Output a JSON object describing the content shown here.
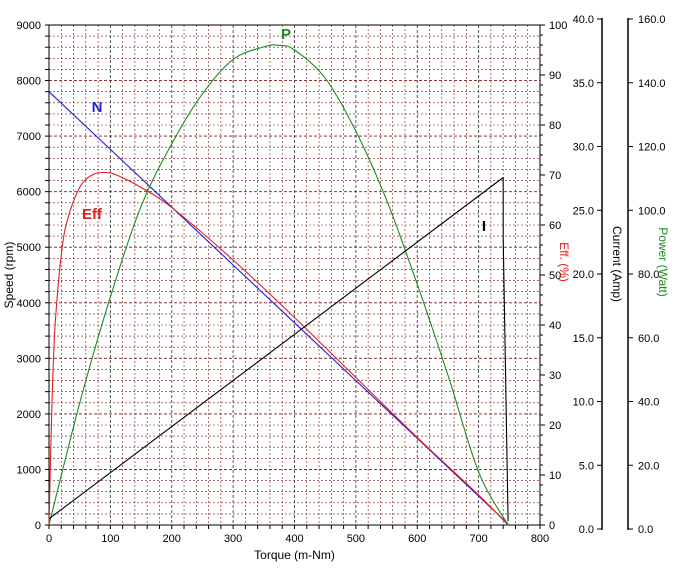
{
  "chart_data": {
    "type": "line",
    "grid": true,
    "legend": "none",
    "axes": {
      "x": {
        "label": "Torque (m-Nm)",
        "range": [
          0,
          800
        ],
        "ticks": [
          "0",
          "100",
          "200",
          "300",
          "400",
          "500",
          "600",
          "700",
          "800"
        ]
      },
      "speed": {
        "label": "Speed (rpm)",
        "range": [
          0,
          9000
        ],
        "ticks": [
          "0",
          "1000",
          "2000",
          "3000",
          "4000",
          "5000",
          "6000",
          "7000",
          "8000",
          "9000"
        ]
      },
      "eff": {
        "label": "Eff. (%)",
        "range": [
          0,
          100
        ],
        "ticks": [
          "0",
          "10",
          "20",
          "30",
          "40",
          "50",
          "60",
          "70",
          "80",
          "90",
          "100"
        ]
      },
      "current": {
        "label": "Current (Amp)",
        "range": [
          0,
          40
        ],
        "ticks": [
          "0.0",
          "5.0",
          "10.0",
          "15.0",
          "20.0",
          "25.0",
          "30.0",
          "35.0",
          "40.0"
        ]
      },
      "power": {
        "label": "Power (Watt)",
        "range": [
          0,
          160
        ],
        "ticks": [
          "0.0",
          "20.0",
          "40.0",
          "60.0",
          "80.0",
          "100.0",
          "120.0",
          "140.0",
          "160.0"
        ]
      }
    },
    "series": [
      {
        "name": "N",
        "axis": "speed",
        "color": "#1f1fd6",
        "x": [
          0,
          100,
          200,
          300,
          400,
          500,
          600,
          700,
          748
        ],
        "y": [
          7800,
          6760,
          5720,
          4680,
          3640,
          2600,
          1560,
          520,
          20
        ]
      },
      {
        "name": "Eff",
        "axis": "eff",
        "color": "#e02020",
        "x": [
          0,
          5,
          10,
          20,
          30,
          50,
          70,
          90,
          110,
          150,
          200,
          300,
          400,
          500,
          600,
          700,
          748
        ],
        "y": [
          0,
          25,
          40,
          54,
          61,
          67.5,
          70,
          70.5,
          70,
          67.5,
          63.5,
          53,
          41.5,
          29.5,
          17.5,
          6,
          0
        ]
      },
      {
        "name": "P",
        "axis": "power",
        "color": "#1e8c1e",
        "x": [
          0,
          50,
          100,
          150,
          200,
          250,
          300,
          350,
          374,
          400,
          450,
          500,
          550,
          600,
          650,
          700,
          748
        ],
        "y": [
          0,
          39,
          73,
          102,
          122,
          138,
          149,
          153,
          153.5,
          152,
          143,
          126,
          104,
          77,
          48,
          17,
          0
        ]
      },
      {
        "name": "I",
        "axis": "current",
        "color": "#000000",
        "x": [
          0,
          740,
          740,
          748
        ],
        "y": [
          0.5,
          27.8,
          23,
          0.3
        ]
      }
    ]
  }
}
